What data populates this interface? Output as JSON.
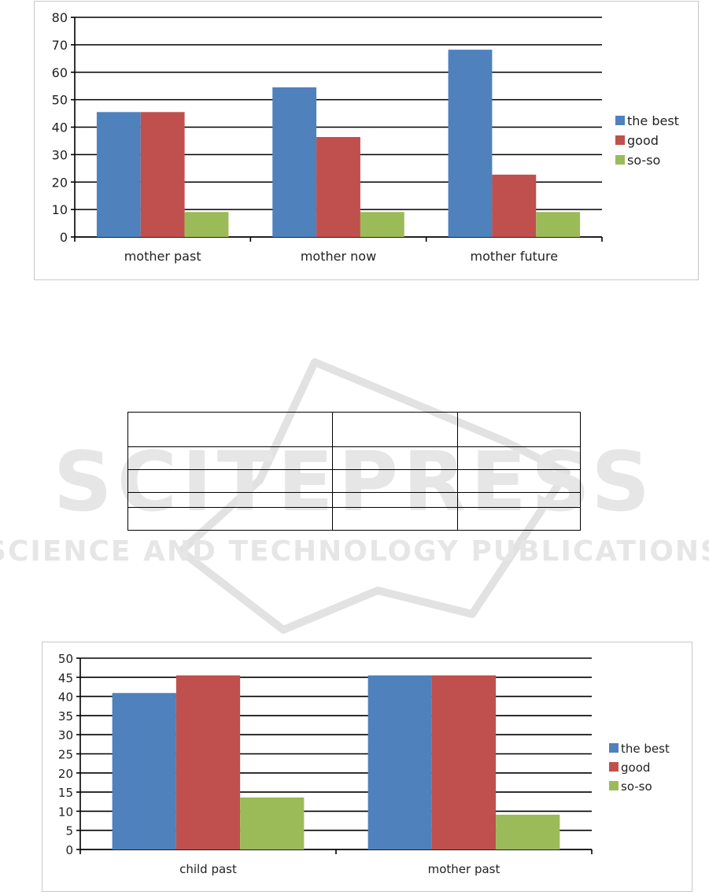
{
  "chart_data": [
    {
      "type": "bar",
      "categories": [
        "mother past",
        "mother now",
        "mother future"
      ],
      "series": [
        {
          "name": "the best",
          "values": [
            45.5,
            54.5,
            68.2
          ]
        },
        {
          "name": "good",
          "values": [
            45.5,
            36.4,
            22.7
          ]
        },
        {
          "name": "so-so",
          "values": [
            9.1,
            9.1,
            9.1
          ]
        }
      ],
      "yticks": [
        0,
        10,
        20,
        30,
        40,
        50,
        60,
        70,
        80
      ],
      "ylim": [
        0,
        80
      ],
      "grid": true,
      "legend_position": "right",
      "colors": [
        "#4f81bd",
        "#c0504d",
        "#9bbb59"
      ]
    },
    {
      "type": "bar",
      "categories": [
        "child past",
        "mother past"
      ],
      "series": [
        {
          "name": "the best",
          "values": [
            40.9,
            45.5
          ]
        },
        {
          "name": "good",
          "values": [
            45.5,
            45.5
          ]
        },
        {
          "name": "so-so",
          "values": [
            13.6,
            9.1
          ]
        }
      ],
      "yticks": [
        0,
        5,
        10,
        15,
        20,
        25,
        30,
        35,
        40,
        45,
        50
      ],
      "ylim": [
        0,
        50
      ],
      "grid": true,
      "legend_position": "right",
      "colors": [
        "#4f81bd",
        "#c0504d",
        "#9bbb59"
      ]
    }
  ],
  "table": {
    "rows": [
      [
        "",
        "",
        ""
      ],
      [
        "",
        "",
        ""
      ],
      [
        "",
        "",
        ""
      ],
      [
        "",
        "",
        ""
      ],
      [
        "",
        "",
        ""
      ]
    ]
  },
  "watermark": {
    "title": "SCITEPRESS",
    "subtitle": "SCIENCE AND TECHNOLOGY PUBLICATIONS"
  }
}
